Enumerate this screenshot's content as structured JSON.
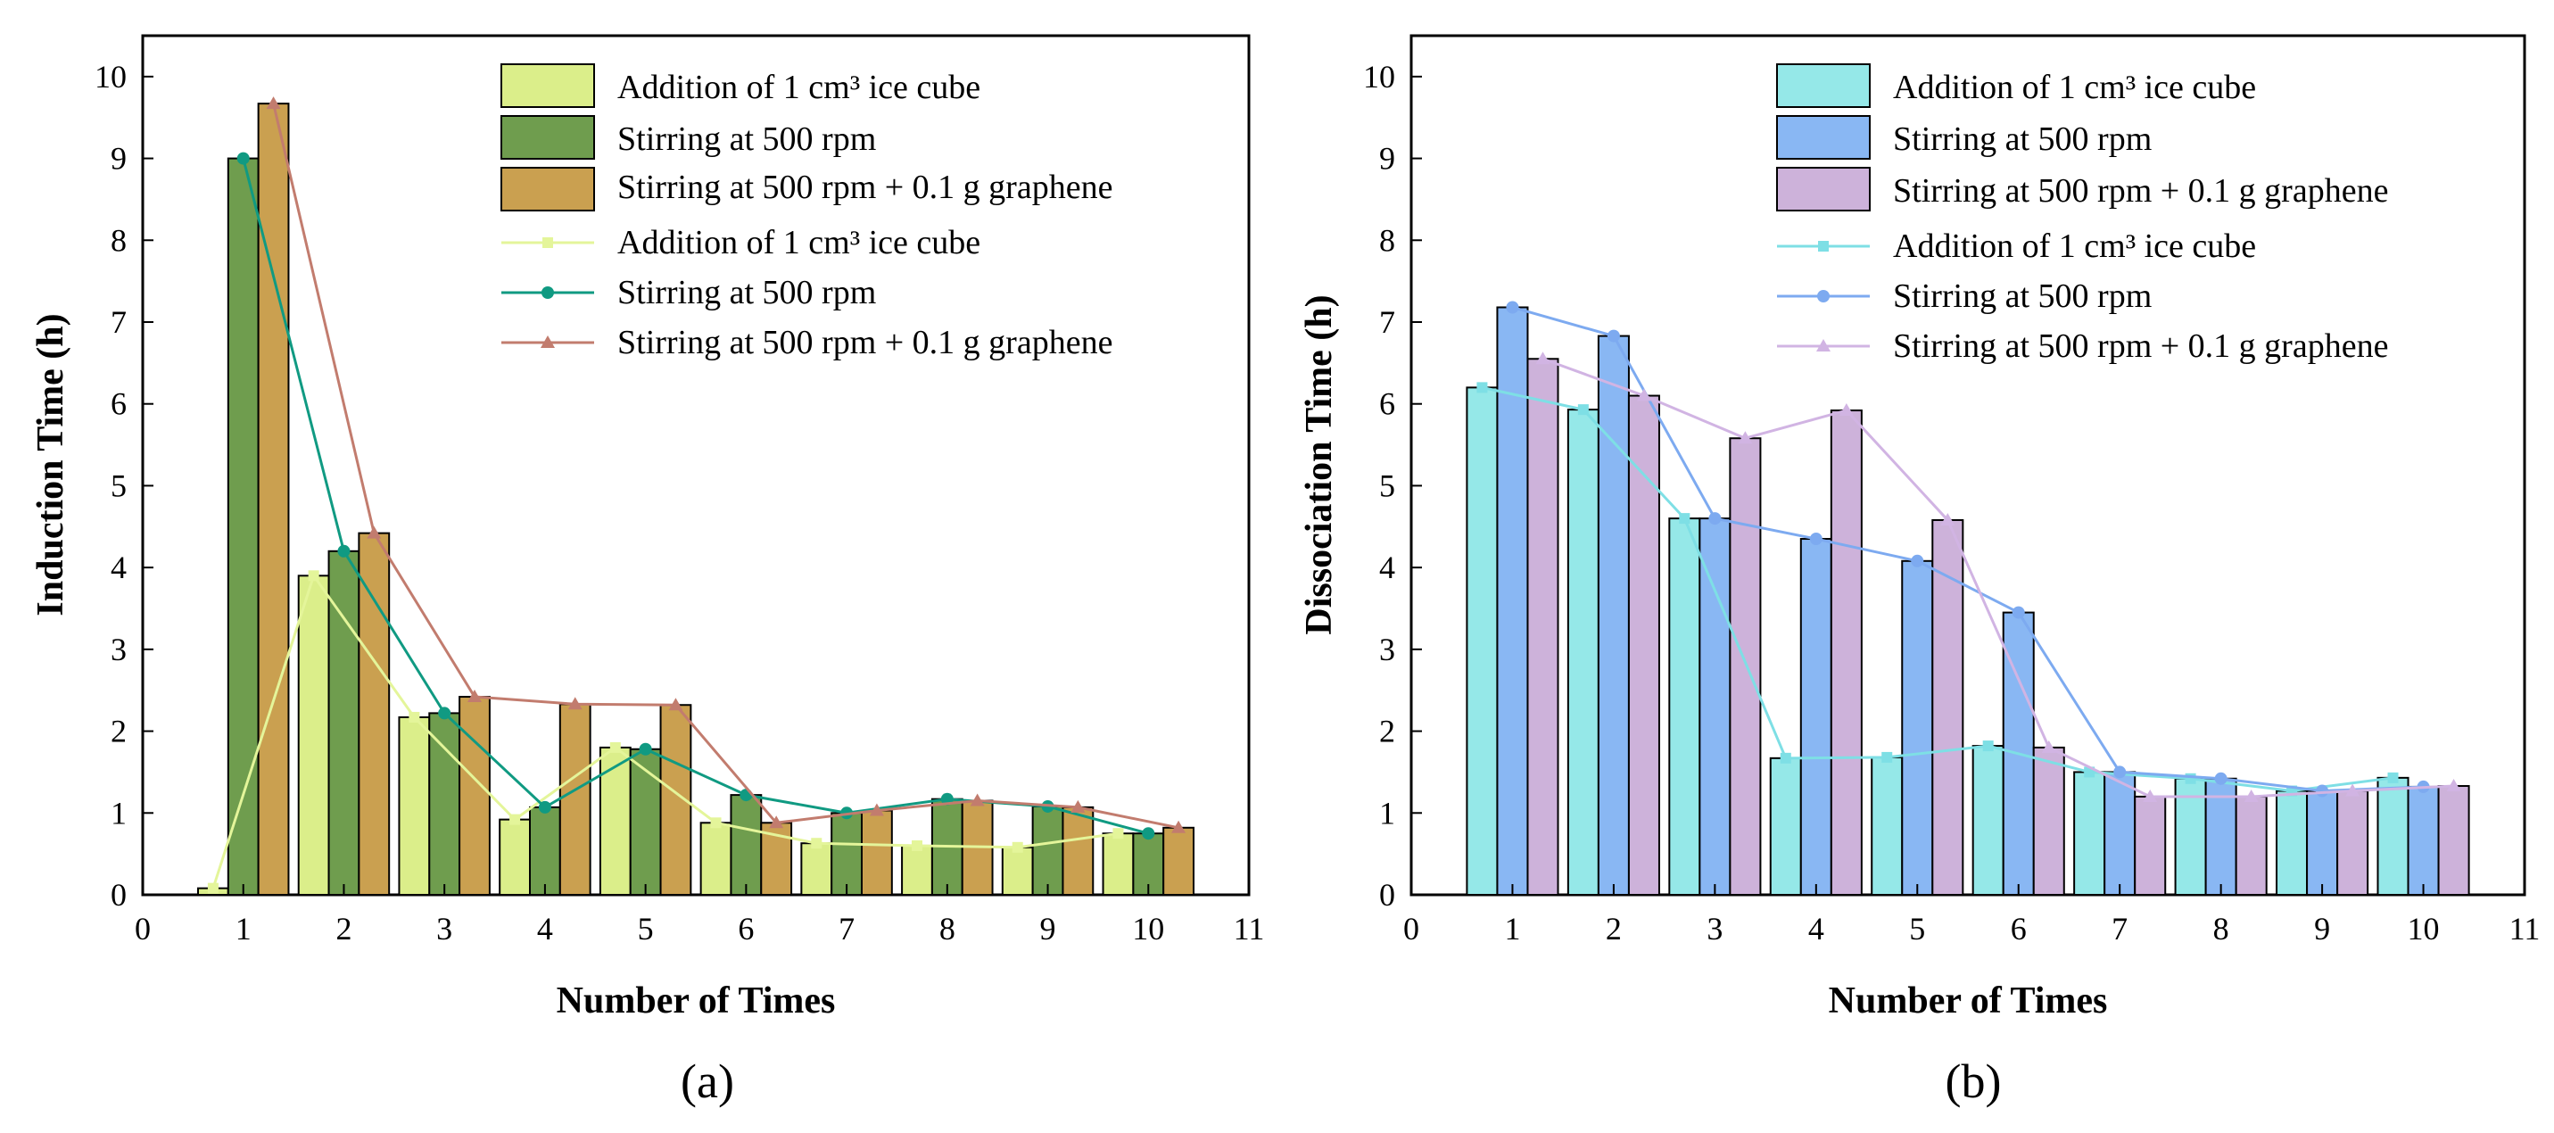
{
  "panels": {
    "a": {
      "label": "(a)"
    },
    "b": {
      "label": "(b)"
    }
  },
  "legend_labels": {
    "ice": "Addition of 1 cm³  ice cube",
    "stir": "Stirring at 500 rpm",
    "graphene": "Stirring at 500 rpm + 0.1 g graphene"
  },
  "colors": {
    "a": {
      "ice_bar": "#dbee8a",
      "stir_bar": "#6f9d4e",
      "graphene_bar": "#caa050",
      "ice_line": "#e4f59a",
      "stir_line": "#109a82",
      "graphene_line": "#c27c6e"
    },
    "b": {
      "ice_bar": "#95e8e8",
      "stir_bar": "#89b7f3",
      "graphene_bar": "#cdb2da",
      "ice_line": "#7edfe5",
      "stir_line": "#7daaf0",
      "graphene_line": "#d1b4e3"
    }
  },
  "chart_data": [
    {
      "type": "bar",
      "panel": "a",
      "xlabel": "Number of Times",
      "ylabel": "Induction Time (h)",
      "xlim": [
        0,
        11
      ],
      "ylim": [
        0,
        10.5
      ],
      "xticks": [
        0,
        1,
        2,
        3,
        4,
        5,
        6,
        7,
        8,
        9,
        10,
        11
      ],
      "yticks": [
        0,
        1,
        2,
        3,
        4,
        5,
        6,
        7,
        8,
        9,
        10
      ],
      "categories": [
        1,
        2,
        3,
        4,
        5,
        6,
        7,
        8,
        9,
        10
      ],
      "series": [
        {
          "name": "Addition of 1 cm³  ice cube",
          "kind": "bar+line",
          "marker": "square",
          "values": [
            0.08,
            3.9,
            2.17,
            0.92,
            1.8,
            0.88,
            0.63,
            0.6,
            0.58,
            0.75
          ]
        },
        {
          "name": "Stirring at 500 rpm",
          "kind": "bar+line",
          "marker": "circle",
          "values": [
            9.0,
            4.2,
            2.22,
            1.07,
            1.78,
            1.22,
            1.0,
            1.17,
            1.08,
            0.75
          ]
        },
        {
          "name": "Stirring at 500 rpm + 0.1 g graphene",
          "kind": "bar+line",
          "marker": "triangle",
          "values": [
            9.67,
            4.42,
            2.42,
            2.33,
            2.32,
            0.88,
            1.03,
            1.15,
            1.07,
            0.82
          ]
        }
      ],
      "legend": "top-right"
    },
    {
      "type": "bar",
      "panel": "b",
      "xlabel": "Number of Times",
      "ylabel": "Dissociation Time (h)",
      "xlim": [
        0,
        11
      ],
      "ylim": [
        0,
        10.5
      ],
      "xticks": [
        0,
        1,
        2,
        3,
        4,
        5,
        6,
        7,
        8,
        9,
        10,
        11
      ],
      "yticks": [
        0,
        1,
        2,
        3,
        4,
        5,
        6,
        7,
        8,
        9,
        10
      ],
      "categories": [
        1,
        2,
        3,
        4,
        5,
        6,
        7,
        8,
        9,
        10
      ],
      "series": [
        {
          "name": "Addition of 1 cm³ ice cube",
          "kind": "bar+line",
          "marker": "square",
          "values": [
            6.2,
            5.93,
            4.6,
            1.67,
            1.68,
            1.82,
            1.5,
            1.42,
            1.27,
            1.43
          ]
        },
        {
          "name": "Stirring at 500 rpm",
          "kind": "bar+line",
          "marker": "circle",
          "values": [
            7.18,
            6.83,
            4.6,
            4.35,
            4.08,
            3.45,
            1.5,
            1.42,
            1.27,
            1.32
          ]
        },
        {
          "name": "Stirring at 500 rpm + 0.1 g graphene",
          "kind": "bar+line",
          "marker": "triangle",
          "values": [
            6.55,
            6.1,
            5.58,
            5.92,
            4.58,
            1.8,
            1.2,
            1.2,
            1.27,
            1.33
          ]
        }
      ],
      "legend": "top-right"
    }
  ]
}
